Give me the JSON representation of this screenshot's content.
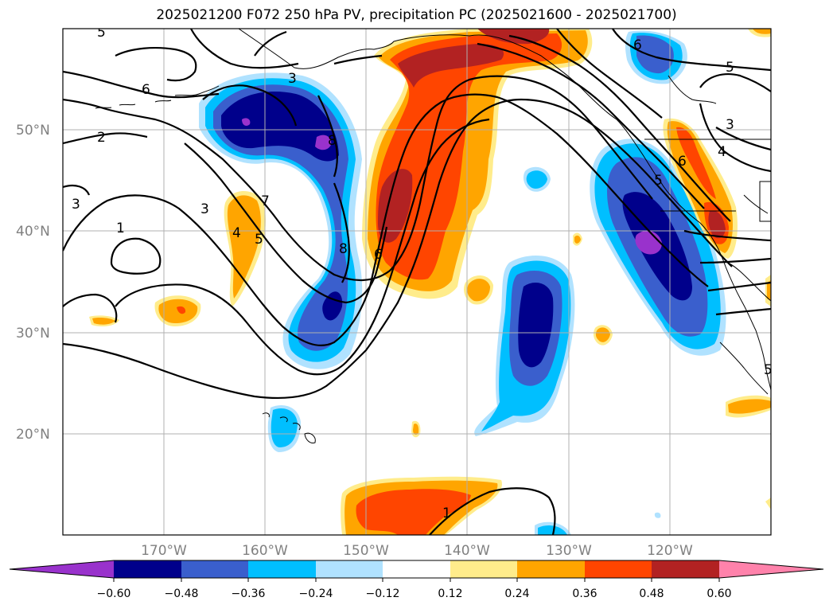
{
  "title": "2025021200 F072 250 hPa PV, precipitation PC (2025021600 - 2025021700)",
  "lat_labels": [
    "50°N",
    "40°N",
    "30°N",
    "20°N"
  ],
  "lon_labels": [
    "170°W",
    "160°W",
    "150°W",
    "140°W",
    "130°W",
    "120°W"
  ],
  "map_extent": {
    "lon_min": -180,
    "lon_max": -110,
    "lat_min": 10,
    "lat_max": 60
  },
  "colorbar": {
    "ticks": [
      "−0.60",
      "−0.48",
      "−0.36",
      "−0.24",
      "−0.12",
      "0.12",
      "0.24",
      "0.36",
      "0.48",
      "0.60"
    ],
    "colors": [
      "#9932cc",
      "#00008b",
      "#3a5fcd",
      "#00bfff",
      "#b0e2ff",
      "#ffffff",
      "#ffec8b",
      "#ffa500",
      "#ff4500",
      "#b22222",
      "#ff82ab"
    ]
  },
  "contour_labels": [
    "5",
    "6",
    "2",
    "3",
    "1",
    "3",
    "7",
    "4",
    "5",
    "8",
    "3",
    "8",
    "6",
    "6",
    "5",
    "3",
    "4",
    "6",
    "5",
    "5",
    "1"
  ],
  "shading_colors": {
    "neg_light": "#b0e2ff",
    "neg_cyan": "#00bfff",
    "neg_mid": "#3a5fcd",
    "neg_dark": "#00008b",
    "neg_purple": "#9932cc",
    "pos_yellow": "#ffec8b",
    "pos_orange": "#ffa500",
    "pos_red": "#ff4500",
    "pos_darkred": "#b22222"
  }
}
